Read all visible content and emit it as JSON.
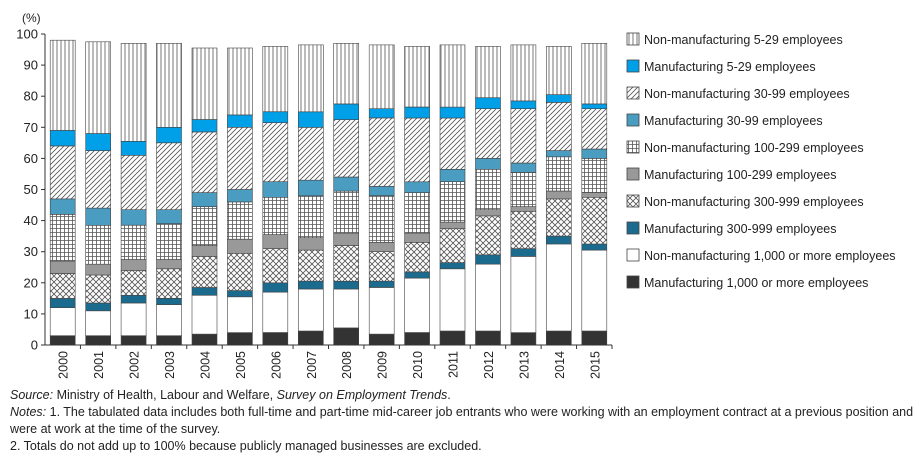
{
  "chart_data": {
    "type": "bar",
    "stacked": true,
    "y_unit_label": "(%)",
    "ylim": [
      0,
      100
    ],
    "y_ticks": [
      "0",
      "10",
      "20",
      "30",
      "40",
      "50",
      "60",
      "70",
      "80",
      "90",
      "100"
    ],
    "grid": false,
    "legend_position": "right",
    "categories": [
      "2000",
      "2001",
      "2002",
      "2003",
      "2004",
      "2005",
      "2006",
      "2007",
      "2008",
      "2009",
      "2010",
      "2011",
      "2012",
      "2013",
      "2014",
      "2015"
    ],
    "series": [
      {
        "name": "Manufacturing 1,000 or more employees",
        "color": "#333333",
        "pattern": "solid",
        "values": [
          3.0,
          3.0,
          3.0,
          3.0,
          3.5,
          4.0,
          4.0,
          4.5,
          5.5,
          3.5,
          4.0,
          4.5,
          4.5,
          4.0,
          4.5,
          4.5
        ]
      },
      {
        "name": "Non-manufacturing 1,000 or more employees",
        "color": "#ffffff",
        "pattern": "solid",
        "values": [
          9.0,
          8.0,
          10.5,
          10.0,
          12.5,
          11.5,
          13.0,
          13.5,
          12.5,
          15.0,
          17.5,
          20.0,
          21.5,
          24.5,
          28.0,
          26.0
        ]
      },
      {
        "name": "Manufacturing 300-999 employees",
        "color": "#1b6b8f",
        "pattern": "solid",
        "values": [
          3.0,
          2.5,
          2.5,
          2.0,
          2.5,
          2.0,
          3.0,
          2.5,
          2.5,
          2.0,
          2.0,
          2.0,
          3.0,
          2.5,
          2.5,
          2.0
        ]
      },
      {
        "name": "Non-manufacturing 300-999 employees",
        "color": "#ffffff",
        "pattern": "diamond",
        "values": [
          8.0,
          9.0,
          8.0,
          9.5,
          10.0,
          12.0,
          11.0,
          10.0,
          11.5,
          9.5,
          9.5,
          11.0,
          12.5,
          12.0,
          12.0,
          15.0
        ]
      },
      {
        "name": "Manufacturing 100-299 employees",
        "color": "#999999",
        "pattern": "solid",
        "values": [
          4.0,
          3.5,
          3.5,
          3.0,
          3.5,
          4.5,
          4.5,
          4.0,
          4.0,
          3.0,
          3.0,
          2.0,
          2.0,
          1.5,
          2.5,
          1.5
        ]
      },
      {
        "name": "Non-manufacturing 100-299 employees",
        "color": "#ffffff",
        "pattern": "grid",
        "values": [
          15.0,
          12.5,
          11.0,
          11.5,
          12.5,
          12.0,
          12.0,
          13.5,
          13.5,
          15.0,
          13.0,
          13.0,
          13.0,
          11.0,
          11.0,
          11.0
        ]
      },
      {
        "name": "Manufacturing 30-99 employees",
        "color": "#4a9cc0",
        "pattern": "solid",
        "values": [
          5.0,
          5.5,
          5.0,
          4.5,
          4.5,
          4.0,
          5.0,
          5.0,
          4.5,
          3.0,
          3.5,
          4.0,
          3.5,
          3.0,
          2.0,
          3.0
        ]
      },
      {
        "name": "Non-manufacturing 30-99 employees",
        "color": "#ffffff",
        "pattern": "diagonal",
        "values": [
          17.0,
          18.5,
          17.5,
          21.5,
          19.5,
          20.0,
          19.0,
          17.0,
          18.5,
          22.0,
          20.5,
          16.5,
          16.0,
          17.5,
          15.5,
          13.0
        ]
      },
      {
        "name": "Manufacturing 5-29 employees",
        "color": "#00a0e9",
        "pattern": "solid",
        "values": [
          5.0,
          5.5,
          4.5,
          5.0,
          4.0,
          4.0,
          3.5,
          5.0,
          5.0,
          3.0,
          3.5,
          3.5,
          3.5,
          2.5,
          2.5,
          1.5
        ]
      },
      {
        "name": "Non-manufacturing 5-29 employees",
        "color": "#ffffff",
        "pattern": "vertical",
        "values": [
          29.0,
          29.5,
          31.5,
          27.0,
          23.0,
          21.5,
          21.0,
          21.5,
          19.5,
          20.5,
          19.5,
          20.0,
          16.5,
          18.0,
          15.5,
          19.5
        ]
      }
    ]
  },
  "notes": {
    "source_label": "Source:",
    "source_text": "Ministry of Health, Labour and Welfare,",
    "source_title": "Survey on Employment Trends",
    "source_end": ".",
    "notes_label": "Notes:",
    "note1": "1. The tabulated data includes both full-time and part-time mid-career job entrants who were working with an employment contract at a previous position and were at work at the time of the survey.",
    "note2": "2. Totals do not add up to 100% because publicly managed businesses are excluded."
  }
}
